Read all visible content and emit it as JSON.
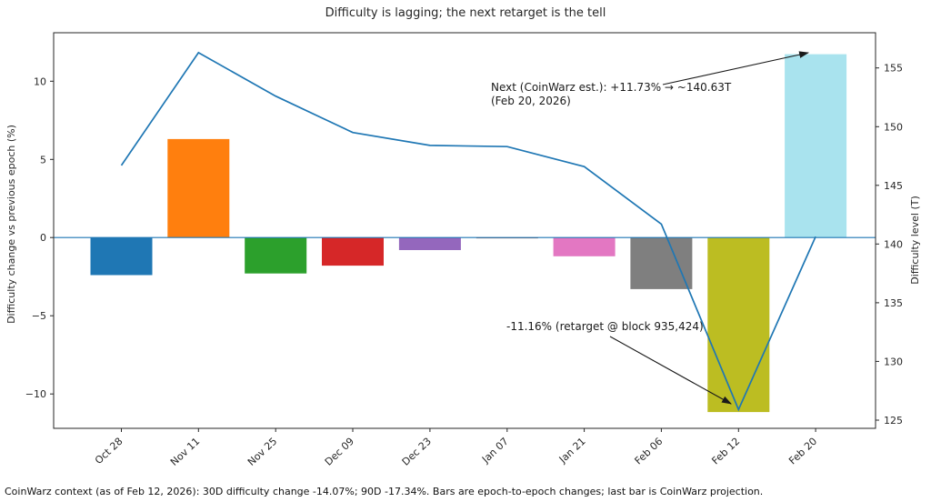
{
  "figure": {
    "title": "Difficulty is lagging; the next retarget is the tell",
    "caption": "CoinWarz context (as of Feb 12, 2026): 30D difficulty change -14.07%; 90D -17.34%. Bars are epoch-to-epoch changes; last bar is CoinWarz projection."
  },
  "chart_data": {
    "type": "bar",
    "title": "Difficulty is lagging; the next retarget is the tell",
    "categories": [
      "Oct 28",
      "Nov 11",
      "Nov 25",
      "Dec 09",
      "Dec 23",
      "Jan 07",
      "Jan 21",
      "Feb 06",
      "Feb 12",
      "Feb 20"
    ],
    "series": [
      {
        "name": "Epoch-to-epoch difficulty change (%)",
        "type": "bar",
        "axis": "left",
        "values": [
          -2.4,
          6.3,
          -2.3,
          -1.8,
          -0.8,
          -0.05,
          -1.2,
          -3.3,
          -11.16,
          11.73
        ],
        "colors": [
          "#1f77b4",
          "#ff7f0e",
          "#2ca02c",
          "#d62728",
          "#9467bd",
          "#8c564b",
          "#e377c2",
          "#7f7f7f",
          "#bcbd22",
          "#a9e3ee"
        ]
      },
      {
        "name": "Difficulty level (T)",
        "type": "line",
        "axis": "right",
        "values": [
          146.7,
          156.3,
          152.6,
          149.5,
          148.4,
          148.3,
          146.6,
          141.7,
          125.9,
          140.63
        ],
        "color": "#1f77b4"
      }
    ],
    "xlabel": "",
    "ylabel_left": "Difficulty change vs previous epoch (%)",
    "ylabel_right": "Difficulty level (T)",
    "yticks_left": [
      10,
      5,
      0,
      -5,
      -10
    ],
    "yticks_right": [
      155,
      150,
      145,
      140,
      135,
      130,
      125
    ],
    "ylim_left": [
      -12.2,
      13.1
    ],
    "ylim_right": [
      124.3,
      158.0
    ],
    "zero_line_value": 0,
    "zero_line_color": "#1f77b4",
    "grid": false,
    "legend_position": "none",
    "annotations": [
      {
        "id": "next-estimate",
        "lines": [
          "Next (CoinWarz est.): +11.73% → ~140.63T",
          "(Feb 20, 2026)"
        ]
      },
      {
        "id": "retarget-drop",
        "lines": [
          "-11.16% (retarget @ block 935,424)"
        ]
      }
    ]
  }
}
